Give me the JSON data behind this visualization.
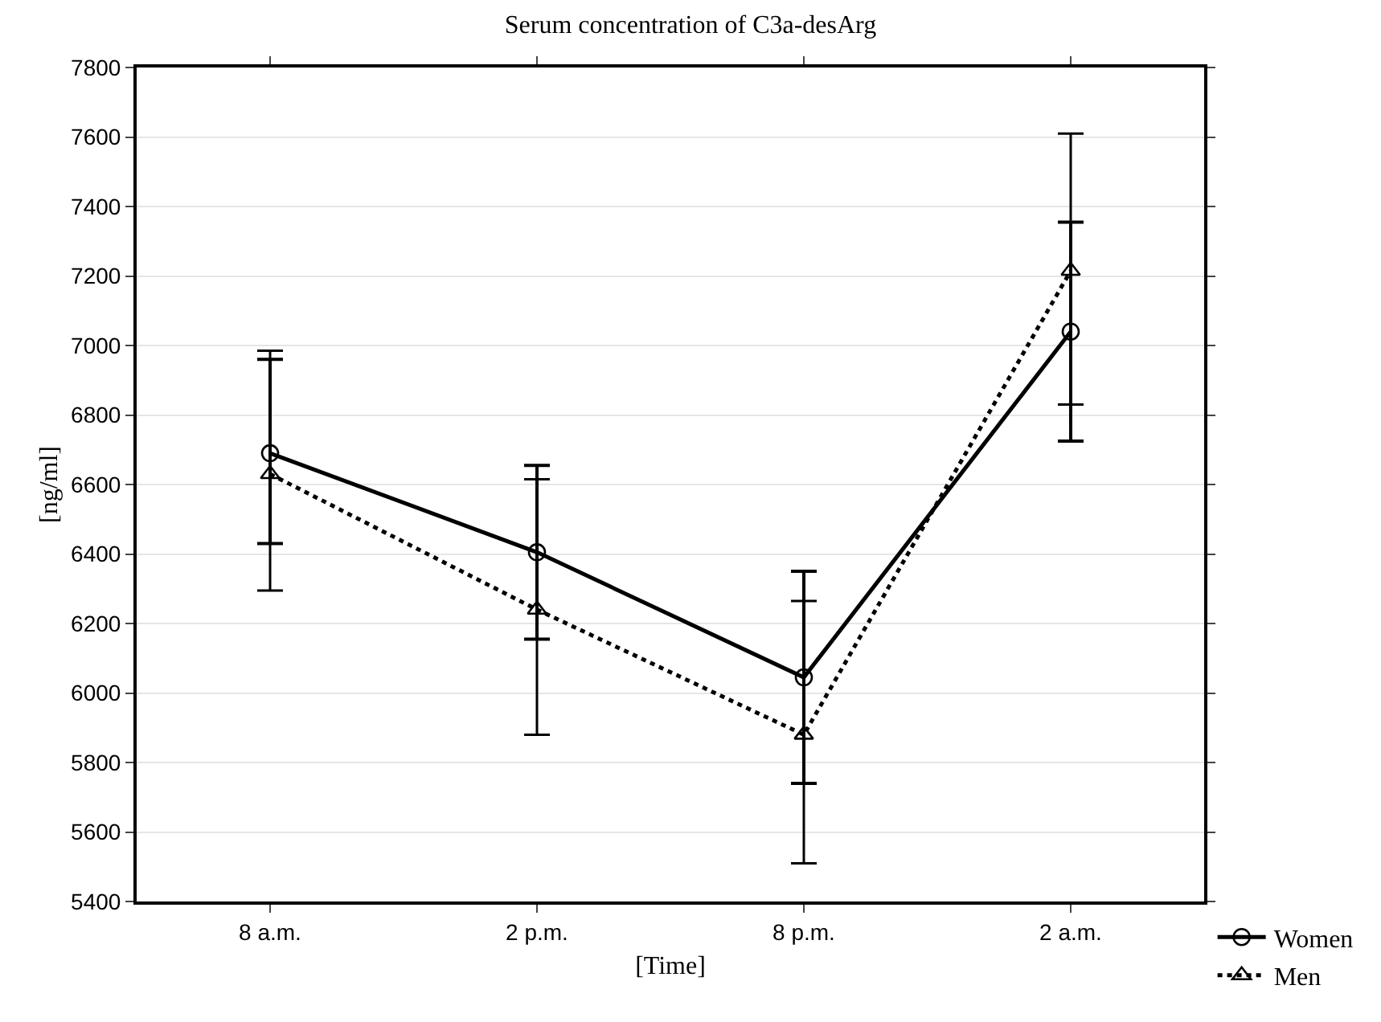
{
  "chart_data": {
    "type": "line",
    "title": "Serum concentration of C3a-desArg",
    "xlabel": "[Time]",
    "ylabel": "[ng/ml]",
    "categories": [
      "8 a.m.",
      "2 p.m.",
      "8 p.m.",
      "2 a.m."
    ],
    "series": [
      {
        "name": "Women",
        "color": "#000000",
        "marker": "circle",
        "line_style": "solid",
        "values": [
          6690,
          6405,
          6045,
          7040
        ],
        "errors": [
          [
            6430,
            6960
          ],
          [
            6155,
            6655
          ],
          [
            5740,
            6350
          ],
          [
            6725,
            7355
          ]
        ]
      },
      {
        "name": "Men",
        "color": "#000000",
        "marker": "triangle",
        "line_style": "dotted",
        "values": [
          6630,
          6240,
          5880,
          7215
        ],
        "errors": [
          [
            6295,
            6985
          ],
          [
            5880,
            6615
          ],
          [
            5510,
            6265
          ],
          [
            6830,
            7610
          ]
        ]
      }
    ],
    "ylim": [
      5400,
      7800
    ],
    "yticks": [
      5400,
      5600,
      5800,
      6000,
      6200,
      6400,
      6600,
      6800,
      7000,
      7200,
      7400,
      7600,
      7800
    ],
    "grid": "y",
    "legend": "bottom right"
  }
}
